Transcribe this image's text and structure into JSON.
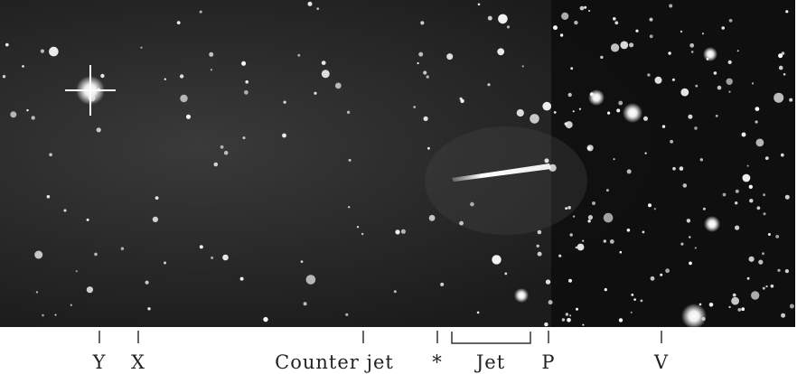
{
  "labels": [
    "Y",
    "X",
    "Counter jet",
    "*",
    "Jet",
    "P",
    "V"
  ]
}
